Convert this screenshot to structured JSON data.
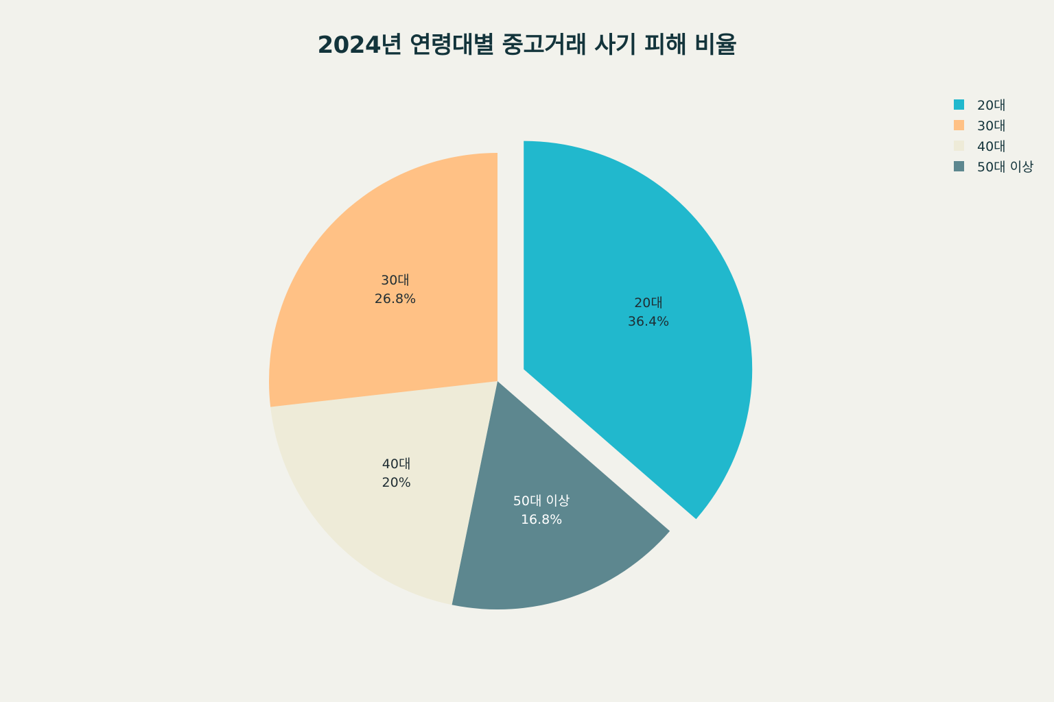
{
  "chart_data": {
    "type": "pie",
    "title": "2024년 연령대별 중고거래 사기 피해 비율",
    "slices": [
      {
        "label": "20대",
        "value": 36.4,
        "percent_label": "36.4%",
        "color": "#21b8cd",
        "pulled": true,
        "text_color": "#1f2d33"
      },
      {
        "label": "50대 이상",
        "value": 16.8,
        "percent_label": "16.8%",
        "color": "#5d878f",
        "pulled": false,
        "text_color": "#ffffff"
      },
      {
        "label": "40대",
        "value": 20,
        "percent_label": "20%",
        "color": "#eeebd8",
        "pulled": false,
        "text_color": "#1f2d33"
      },
      {
        "label": "30대",
        "value": 26.8,
        "percent_label": "26.8%",
        "color": "#ffc185",
        "pulled": false,
        "text_color": "#1f2d33"
      }
    ],
    "legend_order": [
      "20대",
      "30대",
      "40대",
      "50대 이상"
    ],
    "legend_position": "top-right",
    "direction": "clockwise",
    "start": "top"
  }
}
